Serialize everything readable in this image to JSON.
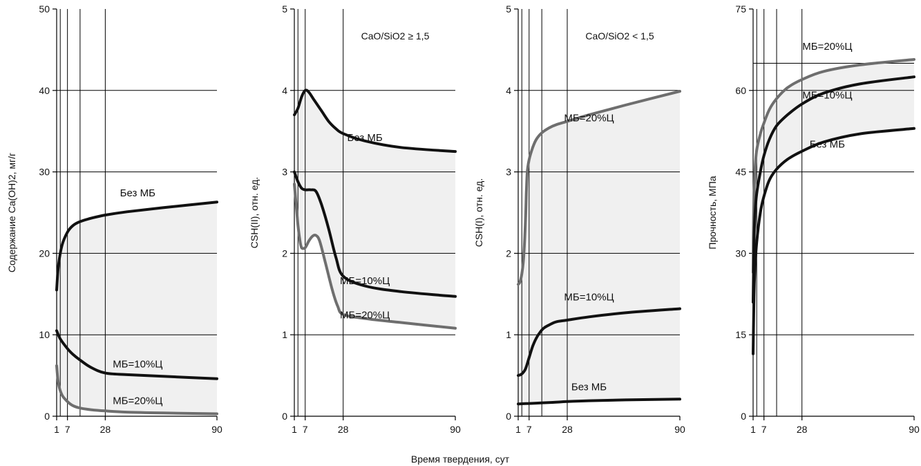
{
  "x_axis_title": "Время твердения, сут",
  "colors": {
    "black": "#111111",
    "gray": "#6e6e6e",
    "fill": "#f0f0f0",
    "grid": "#000000"
  },
  "chart_data": [
    {
      "type": "line",
      "ylabel": "Содержание Ca(OH)2, мг/г",
      "ylim": [
        0,
        50
      ],
      "yticks": [
        0,
        10,
        20,
        30,
        40,
        50
      ],
      "xticks": [
        1,
        7,
        28,
        90
      ],
      "x_gridlines": [
        1,
        3,
        7,
        14,
        28
      ],
      "annotation": "",
      "series": [
        {
          "name": "Без МБ",
          "color": "black",
          "x": [
            1,
            2,
            4,
            7,
            10,
            14,
            20,
            28,
            40,
            60,
            90
          ],
          "y": [
            15.5,
            18.5,
            21.0,
            22.6,
            23.4,
            23.9,
            24.3,
            24.7,
            25.1,
            25.6,
            26.3
          ]
        },
        {
          "name": "МБ=10%Ц",
          "color": "black",
          "x": [
            1,
            3,
            7,
            10,
            14,
            20,
            28,
            40,
            60,
            90
          ],
          "y": [
            10.5,
            9.5,
            8.3,
            7.6,
            6.9,
            6.0,
            5.3,
            5.1,
            4.9,
            4.6
          ]
        },
        {
          "name": "МБ=20%Ц",
          "color": "gray",
          "x": [
            1,
            2,
            4,
            7,
            10,
            14,
            20,
            28,
            40,
            60,
            90
          ],
          "y": [
            6.2,
            4.0,
            2.6,
            1.8,
            1.3,
            1.0,
            0.8,
            0.65,
            0.5,
            0.4,
            0.3
          ]
        }
      ],
      "labels": [
        {
          "text": "Без МБ",
          "x": 46,
          "y": 27.0
        },
        {
          "text": "МБ=10%Ц",
          "x": 46,
          "y": 6.0
        },
        {
          "text": "МБ=20%Ц",
          "x": 46,
          "y": 1.5
        }
      ]
    },
    {
      "type": "line",
      "ylabel": "CSH(II), отн. ед.",
      "ylim": [
        0,
        5
      ],
      "yticks": [
        0,
        1,
        2,
        3,
        4,
        5
      ],
      "xticks": [
        1,
        7,
        28,
        90
      ],
      "x_gridlines": [
        1,
        3,
        7,
        28
      ],
      "annotation": "CaO/SiO2 ≥ 1,5",
      "series": [
        {
          "name": "Без МБ",
          "color": "black",
          "x": [
            1,
            3,
            5,
            7,
            9,
            12,
            16,
            20,
            24,
            28,
            40,
            60,
            90
          ],
          "y": [
            3.7,
            3.78,
            3.92,
            4.0,
            3.98,
            3.88,
            3.75,
            3.62,
            3.53,
            3.47,
            3.38,
            3.3,
            3.25
          ]
        },
        {
          "name": "МБ=10%Ц",
          "color": "black",
          "x": [
            1,
            3,
            5,
            7,
            10,
            13,
            16,
            20,
            24,
            28,
            40,
            60,
            90
          ],
          "y": [
            3.0,
            2.88,
            2.8,
            2.78,
            2.78,
            2.76,
            2.6,
            2.3,
            1.95,
            1.72,
            1.6,
            1.53,
            1.47
          ]
        },
        {
          "name": "МБ=20%Ц",
          "color": "gray",
          "x": [
            1,
            2,
            3,
            4,
            5,
            7,
            9,
            11,
            13,
            15,
            18,
            22,
            25,
            28,
            40,
            60,
            90
          ],
          "y": [
            2.85,
            2.6,
            2.35,
            2.17,
            2.07,
            2.07,
            2.15,
            2.21,
            2.22,
            2.15,
            1.9,
            1.55,
            1.35,
            1.25,
            1.2,
            1.15,
            1.08
          ]
        }
      ],
      "labels": [
        {
          "text": "Без МБ",
          "x": 40,
          "y": 3.38
        },
        {
          "text": "МБ=10%Ц",
          "x": 40,
          "y": 1.62
        },
        {
          "text": "МБ=20%Ц",
          "x": 40,
          "y": 1.2
        }
      ]
    },
    {
      "type": "line",
      "ylabel": "CSH(I), отн. ед.",
      "ylim": [
        0,
        5
      ],
      "yticks": [
        0,
        1,
        2,
        3,
        4,
        5
      ],
      "xticks": [
        1,
        7,
        28,
        90
      ],
      "x_gridlines": [
        1,
        3,
        7,
        14,
        28
      ],
      "annotation": "CaO/SiO2 < 1,5",
      "series": [
        {
          "name": "МБ=20%Ц",
          "color": "gray",
          "x": [
            1,
            2,
            3,
            4,
            5,
            5.5,
            6,
            7,
            9,
            11,
            14,
            18,
            22,
            28,
            40,
            60,
            90
          ],
          "y": [
            1.62,
            1.65,
            1.75,
            1.95,
            2.4,
            2.75,
            3.0,
            3.15,
            3.3,
            3.4,
            3.48,
            3.54,
            3.58,
            3.62,
            3.7,
            3.82,
            3.99
          ]
        },
        {
          "name": "МБ=10%Ц",
          "color": "black",
          "x": [
            1,
            3,
            5,
            7,
            9,
            11,
            13,
            15,
            18,
            22,
            28,
            40,
            60,
            90
          ],
          "y": [
            0.5,
            0.52,
            0.58,
            0.72,
            0.86,
            0.96,
            1.03,
            1.08,
            1.12,
            1.16,
            1.18,
            1.22,
            1.27,
            1.32
          ]
        },
        {
          "name": "Без МБ",
          "color": "black",
          "x": [
            1,
            10,
            20,
            28,
            40,
            60,
            90
          ],
          "y": [
            0.15,
            0.16,
            0.17,
            0.18,
            0.19,
            0.2,
            0.21
          ]
        }
      ],
      "labels": [
        {
          "text": "МБ=20%Ц",
          "x": 40,
          "y": 3.62
        },
        {
          "text": "МБ=10%Ц",
          "x": 40,
          "y": 1.42
        },
        {
          "text": "Без МБ",
          "x": 40,
          "y": 0.32
        }
      ]
    },
    {
      "type": "line",
      "ylabel": "Прочность, МПа",
      "ylim": [
        0,
        75
      ],
      "yticks": [
        0,
        15,
        30,
        45,
        60,
        75
      ],
      "xticks": [
        1,
        7,
        28,
        90
      ],
      "x_gridlines": [
        1,
        3,
        7,
        14,
        28
      ],
      "y_gridlines": [
        15,
        30,
        45,
        60,
        65
      ],
      "annotation": "",
      "series": [
        {
          "name": "МБ=20%Ц",
          "color": "gray",
          "x": [
            1,
            1.3,
            2,
            3,
            5,
            7,
            10,
            14,
            20,
            28,
            40,
            60,
            90
          ],
          "y": [
            26.5,
            38,
            45,
            49,
            52,
            54,
            56.5,
            58.5,
            60.5,
            62,
            63.5,
            64.7,
            65.7
          ]
        },
        {
          "name": "МБ=10%Ц",
          "color": "black",
          "x": [
            1,
            1.5,
            2,
            3,
            5,
            7,
            10,
            14,
            20,
            28,
            40,
            60,
            90
          ],
          "y": [
            21,
            32,
            37,
            41,
            45,
            48,
            51,
            53.5,
            55.5,
            57.5,
            59.5,
            61.2,
            62.5
          ]
        },
        {
          "name": "Без МБ",
          "color": "black",
          "x": [
            1,
            1.5,
            2,
            3,
            5,
            7,
            10,
            14,
            20,
            28,
            40,
            60,
            90
          ],
          "y": [
            11.5,
            22,
            27,
            32,
            37.5,
            40.5,
            43.5,
            45.5,
            47.3,
            48.8,
            50.5,
            52,
            53
          ]
        }
      ],
      "labels": [
        {
          "text": "МБ=20%Ц",
          "x": 42,
          "y": 67.5
        },
        {
          "text": "МБ=10%Ц",
          "x": 42,
          "y": 58.5
        },
        {
          "text": "Без МБ",
          "x": 42,
          "y": 49.5
        }
      ]
    }
  ]
}
